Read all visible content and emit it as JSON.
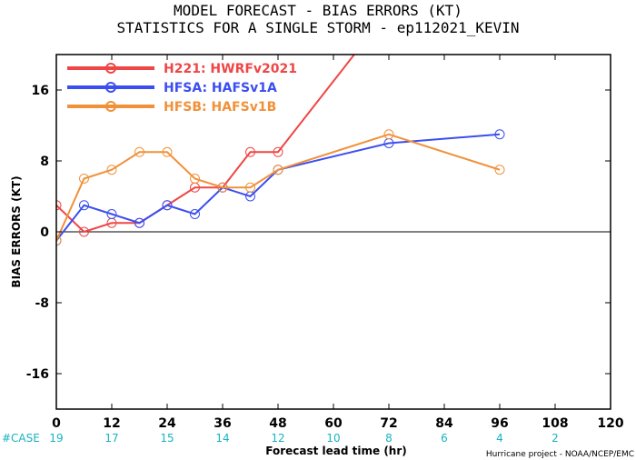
{
  "chart_data": {
    "type": "line",
    "title": "MODEL FORECAST - BIAS ERRORS (KT)",
    "subtitle": "STATISTICS FOR A SINGLE STORM - ep112021_KEVIN",
    "xlabel": "Forecast lead time (hr)",
    "ylabel": "BIAS ERRORS (KT)",
    "xlim": [
      0,
      120
    ],
    "ylim": [
      -20,
      20
    ],
    "xticks": [
      "0",
      "12",
      "24",
      "36",
      "48",
      "60",
      "72",
      "84",
      "96",
      "108",
      "120"
    ],
    "yticks": [
      "16",
      "8",
      "0",
      "-8",
      "-16"
    ],
    "case_label": "#CASE",
    "cases": [
      {
        "x": 0,
        "count": "19"
      },
      {
        "x": 12,
        "count": "17"
      },
      {
        "x": 24,
        "count": "15"
      },
      {
        "x": 36,
        "count": "14"
      },
      {
        "x": 48,
        "count": "12"
      },
      {
        "x": 60,
        "count": "10"
      },
      {
        "x": 72,
        "count": "8"
      },
      {
        "x": 84,
        "count": "6"
      },
      {
        "x": 96,
        "count": "4"
      },
      {
        "x": 108,
        "count": "2"
      }
    ],
    "credit": "Hurricane project - NOAA/NCEP/EMC",
    "legend_position": "top-left",
    "series": [
      {
        "name": "H221: HWRFv2021",
        "color": "#f04545",
        "x": [
          0,
          6,
          12,
          18,
          24,
          30,
          36,
          42,
          48,
          72
        ],
        "y": [
          3,
          0,
          1,
          1,
          3,
          5,
          5,
          9,
          9,
          25
        ]
      },
      {
        "name": "HFSA: HAFSv1A",
        "color": "#3b4ef0",
        "x": [
          0,
          6,
          12,
          18,
          24,
          30,
          36,
          42,
          48,
          72,
          96
        ],
        "y": [
          -1,
          3,
          2,
          1,
          3,
          2,
          5,
          4,
          7,
          10,
          11
        ]
      },
      {
        "name": "HFSB: HAFSv1B",
        "color": "#f0913a",
        "x": [
          0,
          6,
          12,
          18,
          24,
          30,
          36,
          42,
          48,
          72,
          96
        ],
        "y": [
          -1,
          6,
          7,
          9,
          9,
          6,
          5,
          5,
          7,
          11,
          7
        ]
      }
    ]
  }
}
